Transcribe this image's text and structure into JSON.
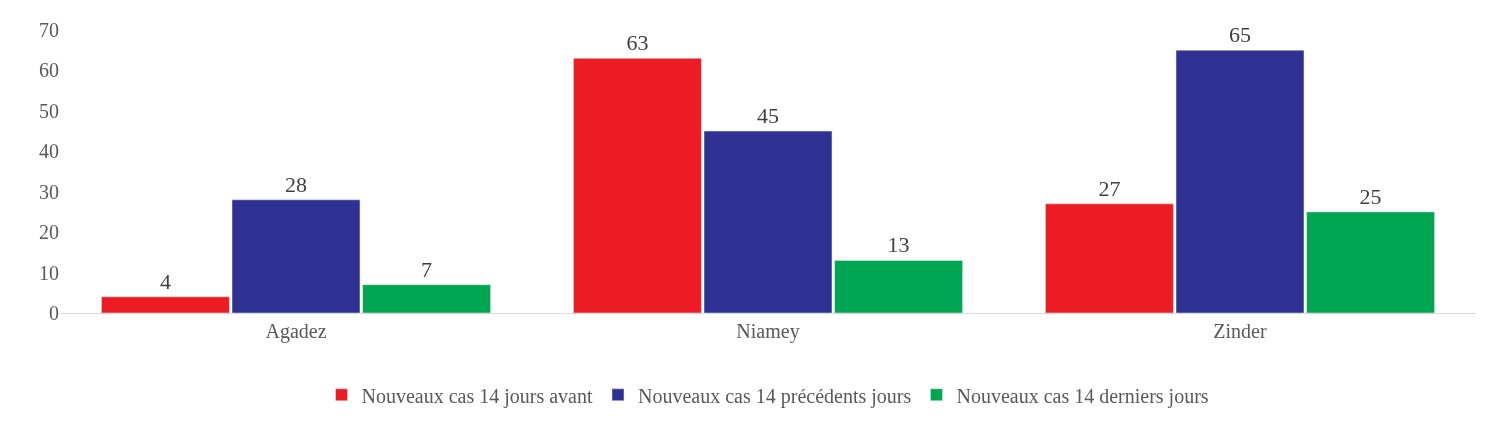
{
  "chart_data": {
    "type": "bar",
    "categories": [
      "Agadez",
      "Niamey",
      "Zinder"
    ],
    "series": [
      {
        "name": "Nouveaux cas 14 jours avant",
        "color": "#ed1c24",
        "values": [
          4,
          63,
          27
        ]
      },
      {
        "name": "Nouveaux cas 14 précédents jours",
        "color": "#2e3192",
        "values": [
          28,
          45,
          65
        ]
      },
      {
        "name": "Nouveaux cas 14 derniers jours",
        "color": "#00a651",
        "values": [
          7,
          13,
          25
        ]
      }
    ],
    "ylim": [
      0,
      70
    ],
    "yticks": [
      0,
      10,
      20,
      30,
      40,
      50,
      60,
      70
    ],
    "data_labels": true,
    "legend": "bottom"
  }
}
